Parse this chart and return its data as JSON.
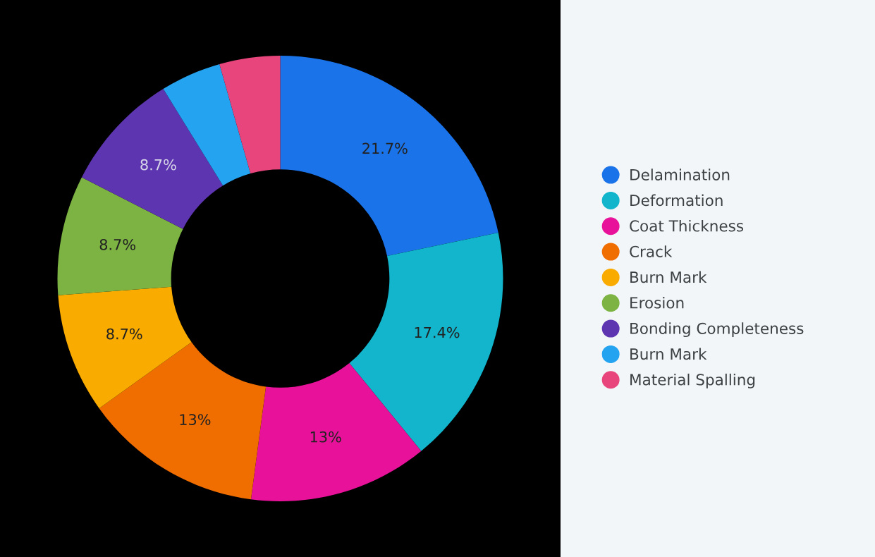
{
  "chart_data": {
    "type": "donut",
    "categories": [
      "Delamination",
      "Deformation",
      "Coat Thickness",
      "Crack",
      "Burn Mark",
      "Erosion",
      "Bonding Completeness",
      "Burn Mark",
      "Material Spalling"
    ],
    "values": [
      21.7,
      17.4,
      13,
      13,
      8.7,
      8.7,
      8.7,
      4.4,
      4.4
    ],
    "value_labels": [
      "21.7%",
      "17.4%",
      "13%",
      "13%",
      "8.7%",
      "8.7%",
      "8.7%",
      null,
      null
    ],
    "colors": [
      "#1a73e8",
      "#12b5cb",
      "#e8129a",
      "#f06d00",
      "#f9ab00",
      "#7cb342",
      "#5e35b1",
      "#24a3f0",
      "#e8457c"
    ],
    "legend": "right"
  }
}
